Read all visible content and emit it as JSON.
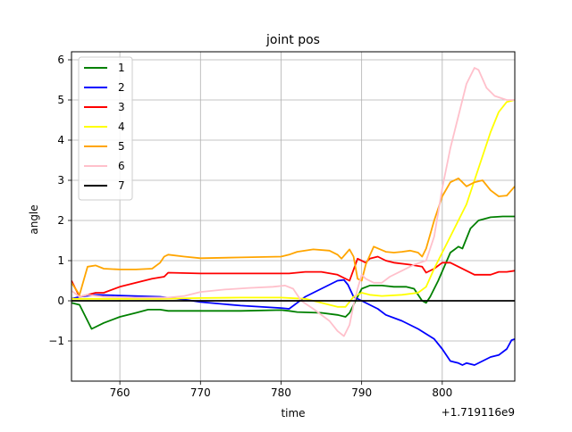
{
  "chart_data": {
    "type": "line",
    "title": "joint pos",
    "xlabel": "time",
    "ylabel": "angle",
    "x_offset_label": "+1.719116e9",
    "xlim": [
      754,
      809
    ],
    "ylim": [
      -2.0,
      6.2
    ],
    "xticks": [
      760,
      770,
      780,
      790,
      800
    ],
    "yticks": [
      -1,
      0,
      1,
      2,
      3,
      4,
      5,
      6
    ],
    "grid": true,
    "legend_position": "upper-left",
    "series": [
      {
        "name": "1",
        "color": "#008000",
        "points": [
          [
            754,
            -0.05
          ],
          [
            755,
            -0.1
          ],
          [
            756.5,
            -0.7
          ],
          [
            758,
            -0.55
          ],
          [
            760,
            -0.4
          ],
          [
            762,
            -0.3
          ],
          [
            763.5,
            -0.22
          ],
          [
            765,
            -0.22
          ],
          [
            766,
            -0.25
          ],
          [
            770,
            -0.25
          ],
          [
            775,
            -0.25
          ],
          [
            780,
            -0.23
          ],
          [
            781,
            -0.25
          ],
          [
            782,
            -0.28
          ],
          [
            785,
            -0.3
          ],
          [
            787,
            -0.35
          ],
          [
            788,
            -0.4
          ],
          [
            788.5,
            -0.3
          ],
          [
            789.5,
            0.1
          ],
          [
            790,
            0.3
          ],
          [
            791,
            0.38
          ],
          [
            792.5,
            0.38
          ],
          [
            794,
            0.35
          ],
          [
            795.5,
            0.35
          ],
          [
            796.5,
            0.3
          ],
          [
            797.5,
            0.0
          ],
          [
            798,
            -0.05
          ],
          [
            798.5,
            0.1
          ],
          [
            799.5,
            0.5
          ],
          [
            801,
            1.2
          ],
          [
            802,
            1.35
          ],
          [
            802.5,
            1.3
          ],
          [
            803.5,
            1.8
          ],
          [
            804.5,
            2.0
          ],
          [
            806,
            2.08
          ],
          [
            807.5,
            2.1
          ],
          [
            809,
            2.1
          ]
        ]
      },
      {
        "name": "2",
        "color": "#0000ff",
        "points": [
          [
            754,
            0.05
          ],
          [
            755,
            0.1
          ],
          [
            757,
            0.15
          ],
          [
            760,
            0.13
          ],
          [
            765,
            0.1
          ],
          [
            768,
            0.03
          ],
          [
            770,
            -0.03
          ],
          [
            775,
            -0.12
          ],
          [
            780,
            -0.18
          ],
          [
            781,
            -0.2
          ],
          [
            782,
            -0.05
          ],
          [
            783,
            0.1
          ],
          [
            784,
            0.2
          ],
          [
            786,
            0.4
          ],
          [
            787,
            0.5
          ],
          [
            787.8,
            0.52
          ],
          [
            788.3,
            0.4
          ],
          [
            789,
            0.1
          ],
          [
            790,
            0.0
          ],
          [
            791,
            -0.1
          ],
          [
            792,
            -0.2
          ],
          [
            793,
            -0.35
          ],
          [
            795,
            -0.5
          ],
          [
            797,
            -0.7
          ],
          [
            799,
            -0.95
          ],
          [
            800,
            -1.2
          ],
          [
            801,
            -1.5
          ],
          [
            802,
            -1.55
          ],
          [
            802.5,
            -1.6
          ],
          [
            803,
            -1.55
          ],
          [
            804,
            -1.6
          ],
          [
            805,
            -1.5
          ],
          [
            806,
            -1.4
          ],
          [
            807,
            -1.35
          ],
          [
            808,
            -1.2
          ],
          [
            808.6,
            -0.98
          ],
          [
            809,
            -0.95
          ]
        ]
      },
      {
        "name": "3",
        "color": "#ff0000",
        "points": [
          [
            754,
            0.5
          ],
          [
            755,
            0.1
          ],
          [
            757,
            0.2
          ],
          [
            758,
            0.2
          ],
          [
            760,
            0.35
          ],
          [
            762,
            0.45
          ],
          [
            764,
            0.55
          ],
          [
            765.5,
            0.6
          ],
          [
            766,
            0.7
          ],
          [
            770,
            0.68
          ],
          [
            775,
            0.68
          ],
          [
            780,
            0.68
          ],
          [
            781,
            0.68
          ],
          [
            783,
            0.72
          ],
          [
            785,
            0.72
          ],
          [
            787,
            0.65
          ],
          [
            788.5,
            0.5
          ],
          [
            789.5,
            1.05
          ],
          [
            790.5,
            0.95
          ],
          [
            791,
            1.05
          ],
          [
            792,
            1.1
          ],
          [
            793,
            1.0
          ],
          [
            794,
            0.95
          ],
          [
            796,
            0.9
          ],
          [
            797.5,
            0.85
          ],
          [
            798,
            0.7
          ],
          [
            799,
            0.8
          ],
          [
            800,
            0.95
          ],
          [
            801,
            0.95
          ],
          [
            802,
            0.85
          ],
          [
            803,
            0.75
          ],
          [
            804,
            0.65
          ],
          [
            805,
            0.65
          ],
          [
            806,
            0.65
          ],
          [
            807,
            0.72
          ],
          [
            808,
            0.72
          ],
          [
            809,
            0.75
          ]
        ]
      },
      {
        "name": "4",
        "color": "#ffff00",
        "points": [
          [
            754,
            0.05
          ],
          [
            758,
            0.05
          ],
          [
            765,
            0.05
          ],
          [
            770,
            0.07
          ],
          [
            775,
            0.08
          ],
          [
            780,
            0.08
          ],
          [
            783,
            0.05
          ],
          [
            786,
            -0.1
          ],
          [
            787,
            -0.15
          ],
          [
            788,
            -0.15
          ],
          [
            789,
            0.1
          ],
          [
            790,
            0.2
          ],
          [
            791,
            0.15
          ],
          [
            792.5,
            0.12
          ],
          [
            795,
            0.15
          ],
          [
            797,
            0.2
          ],
          [
            798,
            0.35
          ],
          [
            799,
            0.8
          ],
          [
            800,
            1.2
          ],
          [
            801,
            1.6
          ],
          [
            802,
            2.0
          ],
          [
            803,
            2.4
          ],
          [
            804,
            3.0
          ],
          [
            805,
            3.6
          ],
          [
            806,
            4.2
          ],
          [
            807,
            4.7
          ],
          [
            808,
            4.95
          ],
          [
            809,
            5.0
          ]
        ]
      },
      {
        "name": "5",
        "color": "#ffa500",
        "points": [
          [
            754,
            0.45
          ],
          [
            755,
            0.15
          ],
          [
            755.5,
            0.5
          ],
          [
            756,
            0.85
          ],
          [
            757,
            0.88
          ],
          [
            758,
            0.8
          ],
          [
            760,
            0.78
          ],
          [
            762,
            0.78
          ],
          [
            764,
            0.8
          ],
          [
            765,
            0.95
          ],
          [
            765.5,
            1.1
          ],
          [
            766,
            1.15
          ],
          [
            768,
            1.1
          ],
          [
            770,
            1.06
          ],
          [
            775,
            1.08
          ],
          [
            780,
            1.1
          ],
          [
            781,
            1.15
          ],
          [
            782,
            1.22
          ],
          [
            784,
            1.28
          ],
          [
            786,
            1.25
          ],
          [
            787,
            1.15
          ],
          [
            787.5,
            1.05
          ],
          [
            788.5,
            1.28
          ],
          [
            789,
            1.1
          ],
          [
            789.5,
            0.55
          ],
          [
            790,
            0.5
          ],
          [
            790.5,
            0.9
          ],
          [
            791.5,
            1.35
          ],
          [
            793,
            1.22
          ],
          [
            794,
            1.2
          ],
          [
            795,
            1.22
          ],
          [
            796,
            1.25
          ],
          [
            797,
            1.2
          ],
          [
            797.5,
            1.1
          ],
          [
            798,
            1.3
          ],
          [
            799,
            2.0
          ],
          [
            800,
            2.6
          ],
          [
            801,
            2.95
          ],
          [
            802,
            3.05
          ],
          [
            802.5,
            2.95
          ],
          [
            803,
            2.85
          ],
          [
            804,
            2.95
          ],
          [
            805,
            3.0
          ],
          [
            806,
            2.75
          ],
          [
            807,
            2.6
          ],
          [
            808,
            2.62
          ],
          [
            809,
            2.85
          ]
        ]
      },
      {
        "name": "6",
        "color": "#ffc0cb",
        "points": [
          [
            754,
            0.25
          ],
          [
            755,
            0.1
          ],
          [
            756,
            0.15
          ],
          [
            758,
            0.1
          ],
          [
            762,
            0.08
          ],
          [
            766,
            0.08
          ],
          [
            768,
            0.12
          ],
          [
            770,
            0.22
          ],
          [
            773,
            0.28
          ],
          [
            776,
            0.32
          ],
          [
            779,
            0.35
          ],
          [
            780.5,
            0.38
          ],
          [
            781.5,
            0.3
          ],
          [
            782.5,
            0.0
          ],
          [
            784,
            -0.2
          ],
          [
            786,
            -0.5
          ],
          [
            787,
            -0.75
          ],
          [
            787.8,
            -0.88
          ],
          [
            788.5,
            -0.6
          ],
          [
            789,
            -0.1
          ],
          [
            789.5,
            0.3
          ],
          [
            790,
            0.65
          ],
          [
            790.5,
            0.55
          ],
          [
            791.5,
            0.45
          ],
          [
            792.5,
            0.45
          ],
          [
            793.5,
            0.6
          ],
          [
            795,
            0.75
          ],
          [
            796.5,
            0.9
          ],
          [
            798,
            1.0
          ],
          [
            799,
            1.6
          ],
          [
            800,
            2.8
          ],
          [
            801,
            3.8
          ],
          [
            802,
            4.6
          ],
          [
            803,
            5.4
          ],
          [
            804,
            5.8
          ],
          [
            804.5,
            5.75
          ],
          [
            805.5,
            5.3
          ],
          [
            806.5,
            5.1
          ],
          [
            808,
            5.0
          ],
          [
            809,
            5.0
          ]
        ]
      },
      {
        "name": "7",
        "color": "#000000",
        "points": [
          [
            754,
            0.0
          ],
          [
            809,
            0.0
          ]
        ]
      }
    ]
  }
}
